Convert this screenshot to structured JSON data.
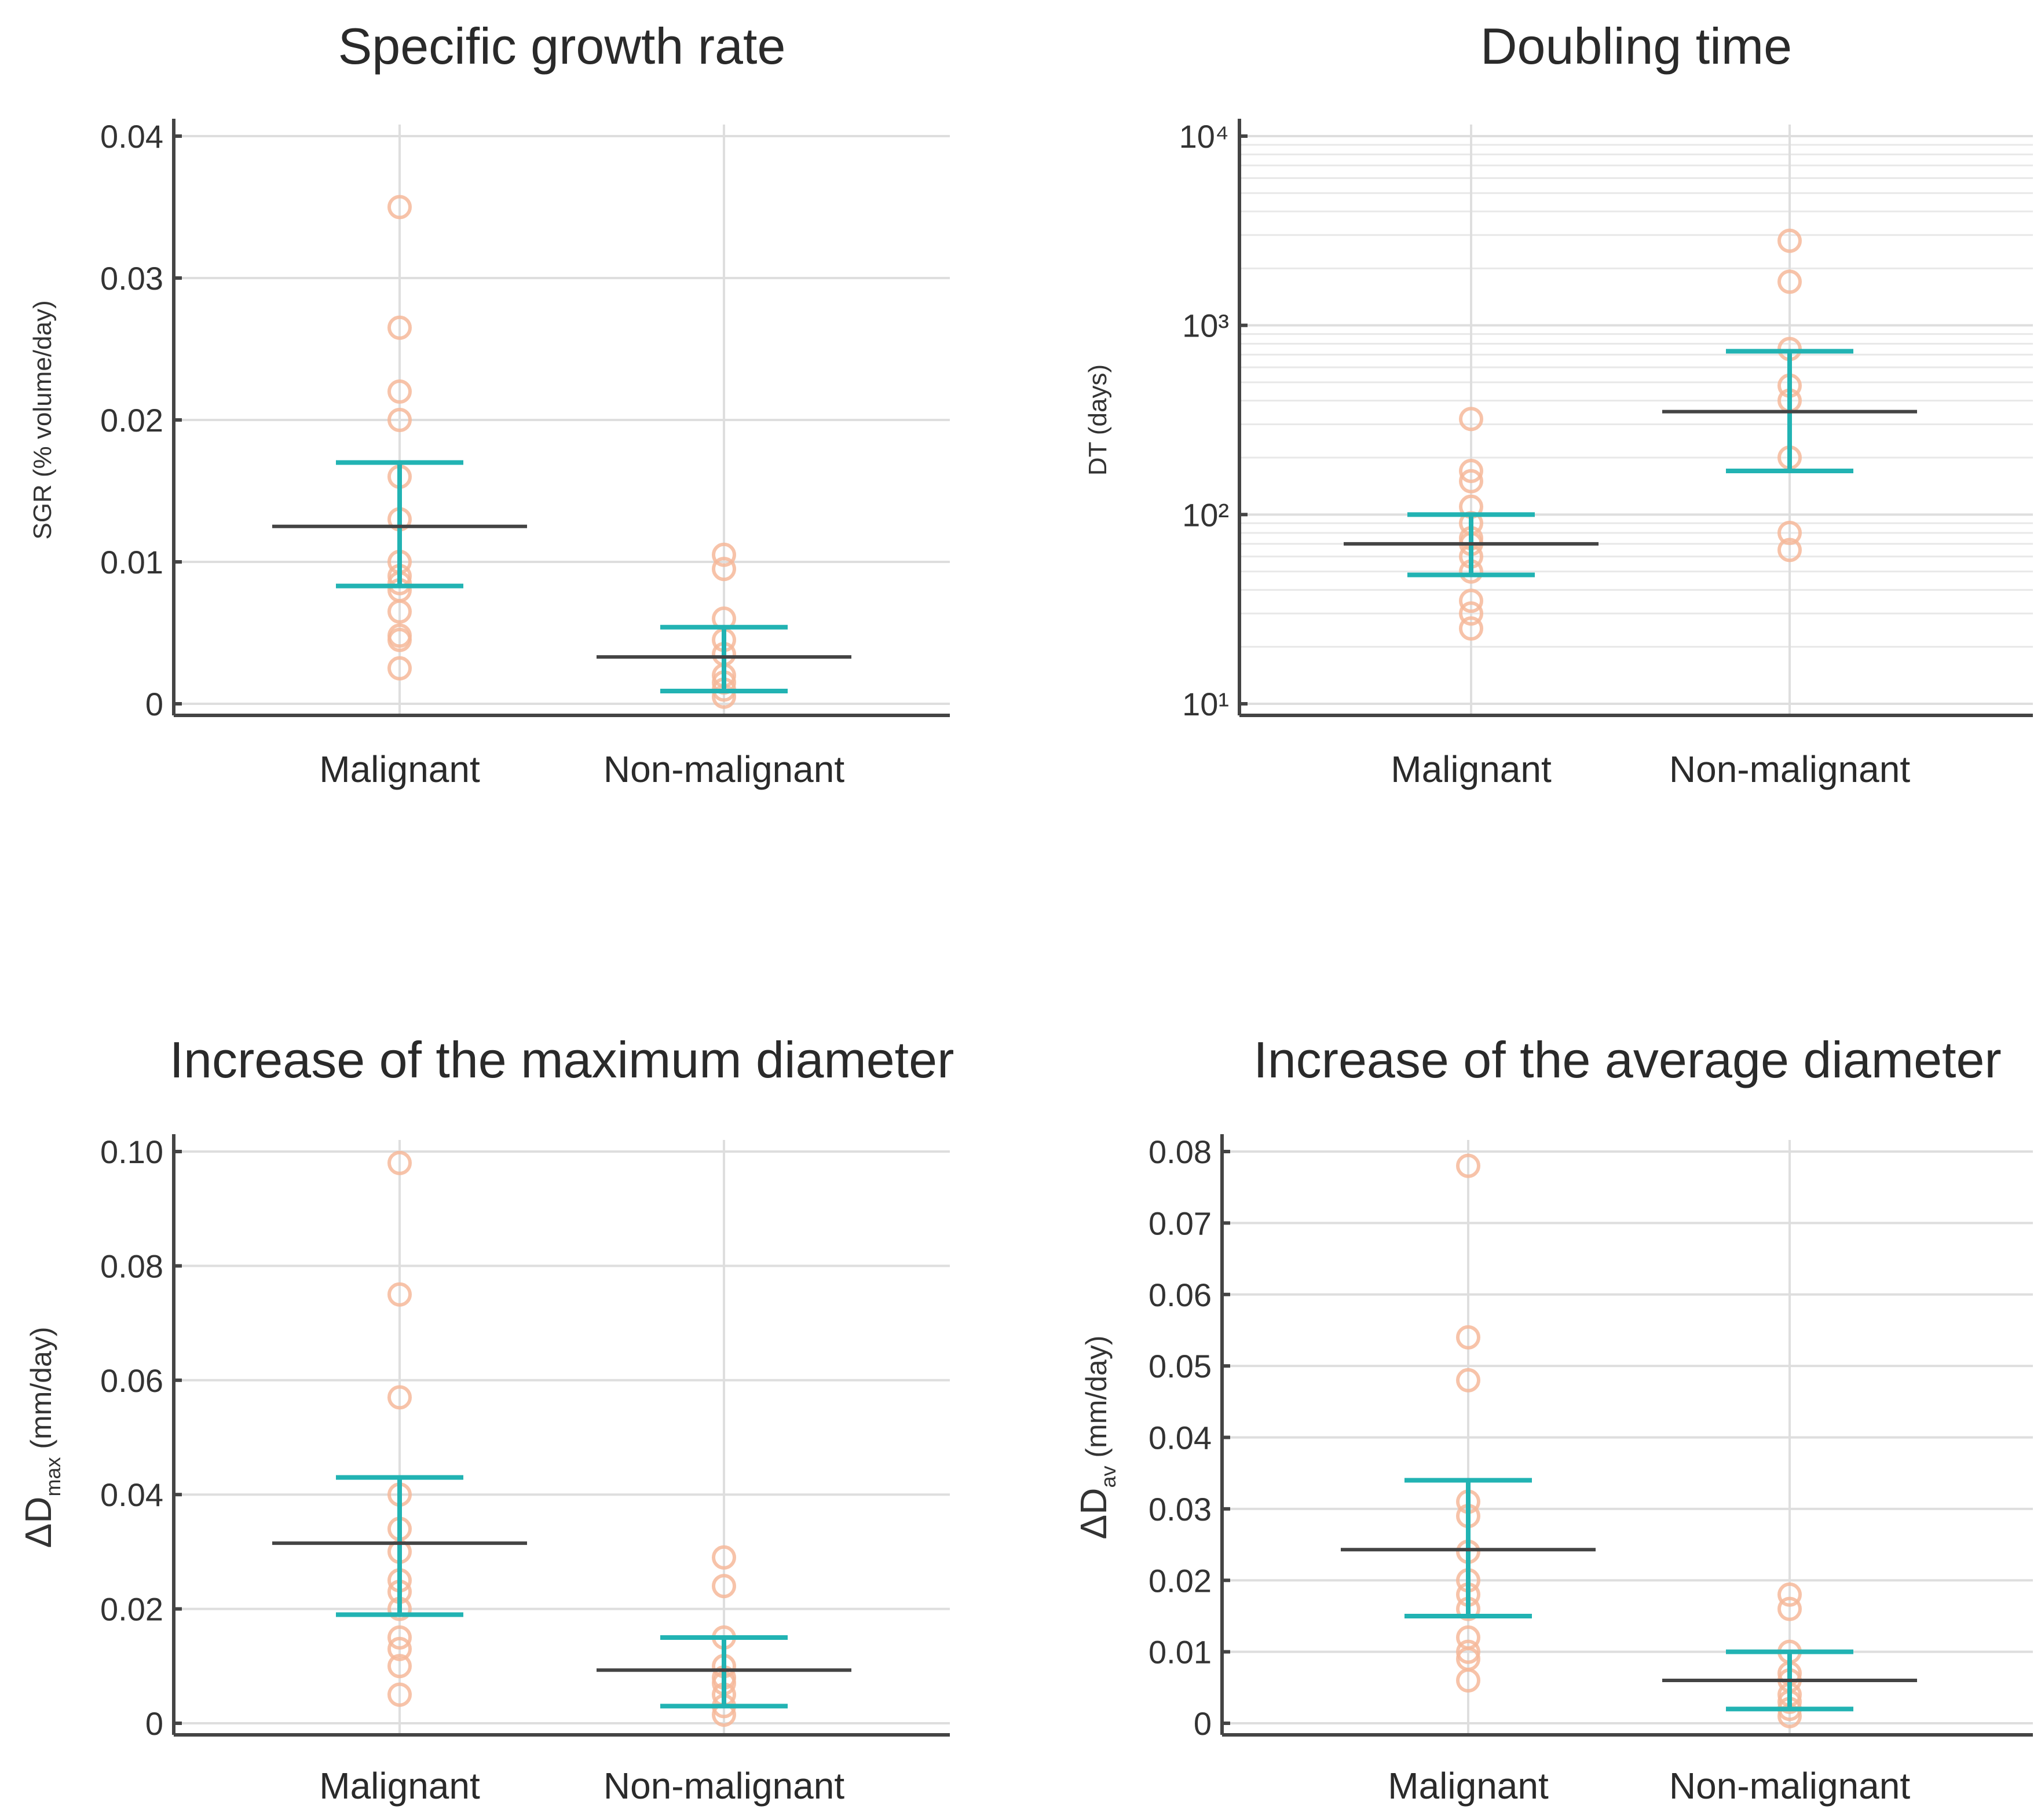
{
  "colors": {
    "points": "#f6b89a",
    "ci": "#22b3b3",
    "mean": "#444444",
    "grid": "#dedede",
    "axis": "#444444"
  },
  "chart_data": [
    {
      "id": "sgr",
      "type": "scatter",
      "title": "Specific growth rate",
      "ylabel": "SGR (% volume/day)",
      "yscale": "linear",
      "ylim": [
        0,
        0.04
      ],
      "yticks": [
        0,
        0.01,
        0.02,
        0.03,
        0.04
      ],
      "ytick_labels": [
        "0",
        "0.01",
        "0.02",
        "0.03",
        "0.04"
      ],
      "categories": [
        "Malignant",
        "Non-malignant"
      ],
      "groups": [
        {
          "name": "Malignant",
          "points": [
            0.035,
            0.0265,
            0.022,
            0.02,
            0.016,
            0.013,
            0.01,
            0.009,
            0.0085,
            0.008,
            0.0065,
            0.0048,
            0.0045,
            0.0025
          ],
          "mean": 0.0125,
          "ci_upper": 0.017,
          "ci_lower": 0.0083
        },
        {
          "name": "Non-malignant",
          "points": [
            0.0105,
            0.0095,
            0.006,
            0.0045,
            0.0035,
            0.002,
            0.0015,
            0.001,
            0.0005
          ],
          "mean": 0.0033,
          "ci_upper": 0.0054,
          "ci_lower": 0.0009
        }
      ]
    },
    {
      "id": "dt",
      "type": "scatter",
      "title": "Doubling time",
      "ylabel": "DT (days)",
      "yscale": "log",
      "ylim": [
        10,
        10000
      ],
      "yticks": [
        10,
        100,
        1000,
        10000
      ],
      "ytick_labels": [
        "10¹",
        "10²",
        "10³",
        "10⁴"
      ],
      "categories": [
        "Malignant",
        "Non-malignant"
      ],
      "groups": [
        {
          "name": "Malignant",
          "points": [
            320,
            170,
            150,
            110,
            90,
            75,
            70,
            60,
            50,
            35,
            30,
            25
          ],
          "mean": 70,
          "ci_upper": 100,
          "ci_lower": 48
        },
        {
          "name": "Non-malignant",
          "points": [
            2800,
            1700,
            750,
            480,
            400,
            200,
            80,
            65
          ],
          "mean": 350,
          "ci_upper": 730,
          "ci_lower": 170
        }
      ]
    },
    {
      "id": "dmax",
      "type": "scatter",
      "title": "Increase of the maximum diameter",
      "ylabel": "ΔD max (mm/day)",
      "ylabel_main": "ΔD",
      "ylabel_sub": "max",
      "ylabel_unit": "(mm/day)",
      "yscale": "linear",
      "ylim": [
        0,
        0.1
      ],
      "yticks": [
        0,
        0.02,
        0.04,
        0.06,
        0.08,
        0.1
      ],
      "ytick_labels": [
        "0",
        "0.02",
        "0.04",
        "0.06",
        "0.08",
        "0.10"
      ],
      "categories": [
        "Malignant",
        "Non-malignant"
      ],
      "groups": [
        {
          "name": "Malignant",
          "points": [
            0.098,
            0.075,
            0.057,
            0.04,
            0.034,
            0.03,
            0.025,
            0.023,
            0.02,
            0.015,
            0.013,
            0.01,
            0.005
          ],
          "mean": 0.0315,
          "ci_upper": 0.043,
          "ci_lower": 0.019
        },
        {
          "name": "Non-malignant",
          "points": [
            0.029,
            0.024,
            0.015,
            0.01,
            0.008,
            0.007,
            0.005,
            0.003,
            0.0015
          ],
          "mean": 0.0093,
          "ci_upper": 0.015,
          "ci_lower": 0.003
        }
      ]
    },
    {
      "id": "dav",
      "type": "scatter",
      "title": "Increase of the average diameter",
      "ylabel": "ΔD av (mm/day)",
      "ylabel_main": "ΔD",
      "ylabel_sub": "av",
      "ylabel_unit": "(mm/day)",
      "yscale": "linear",
      "ylim": [
        0,
        0.08
      ],
      "yticks": [
        0,
        0.01,
        0.02,
        0.03,
        0.04,
        0.05,
        0.06,
        0.07,
        0.08
      ],
      "ytick_labels": [
        "0",
        "0.01",
        "0.02",
        "0.03",
        "0.04",
        "0.05",
        "0.06",
        "0.07",
        "0.08"
      ],
      "categories": [
        "Malignant",
        "Non-malignant"
      ],
      "groups": [
        {
          "name": "Malignant",
          "points": [
            0.078,
            0.054,
            0.048,
            0.031,
            0.029,
            0.024,
            0.02,
            0.018,
            0.016,
            0.012,
            0.01,
            0.009,
            0.006
          ],
          "mean": 0.0243,
          "ci_upper": 0.034,
          "ci_lower": 0.015
        },
        {
          "name": "Non-malignant",
          "points": [
            0.018,
            0.016,
            0.01,
            0.007,
            0.006,
            0.004,
            0.003,
            0.002,
            0.001
          ],
          "mean": 0.006,
          "ci_upper": 0.01,
          "ci_lower": 0.002
        }
      ]
    }
  ]
}
